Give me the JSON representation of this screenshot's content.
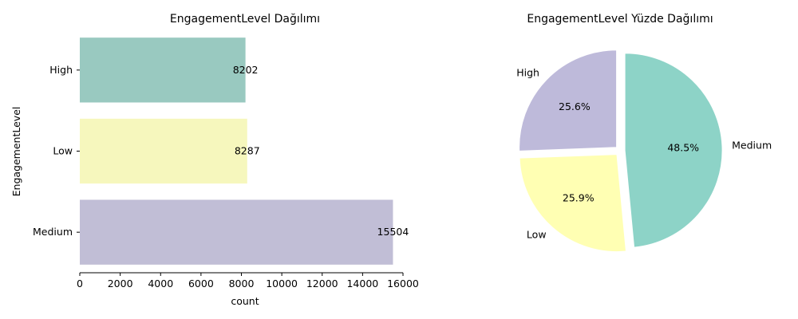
{
  "chart_data": [
    {
      "type": "bar",
      "orientation": "horizontal",
      "title": "EngagementLevel Dağılımı",
      "xlabel": "count",
      "ylabel": "EngagementLevel",
      "categories": [
        "High",
        "Low",
        "Medium"
      ],
      "values": [
        8202,
        8287,
        15504
      ],
      "data_labels": [
        "8202",
        "8287",
        "15504"
      ],
      "xlim": [
        0,
        16000
      ],
      "xticks": [
        0,
        2000,
        4000,
        6000,
        8000,
        10000,
        12000,
        14000,
        16000
      ],
      "xtick_labels": [
        "0",
        "2000",
        "4000",
        "6000",
        "8000",
        "10000",
        "12000",
        "14000",
        "16000"
      ],
      "colors": [
        "#99c9c0",
        "#f6f7bd",
        "#c1bed6"
      ],
      "grid": false
    },
    {
      "type": "pie",
      "title": "EngagementLevel Yüzde Dağılımı",
      "labels": [
        "High",
        "Low",
        "Medium"
      ],
      "values": [
        25.6,
        25.9,
        48.5
      ],
      "pct_labels": [
        "25.6%",
        "25.9%",
        "48.5%"
      ],
      "colors": [
        "#bebada",
        "#ffffb3",
        "#8dd3c7"
      ],
      "exploded": true
    }
  ]
}
